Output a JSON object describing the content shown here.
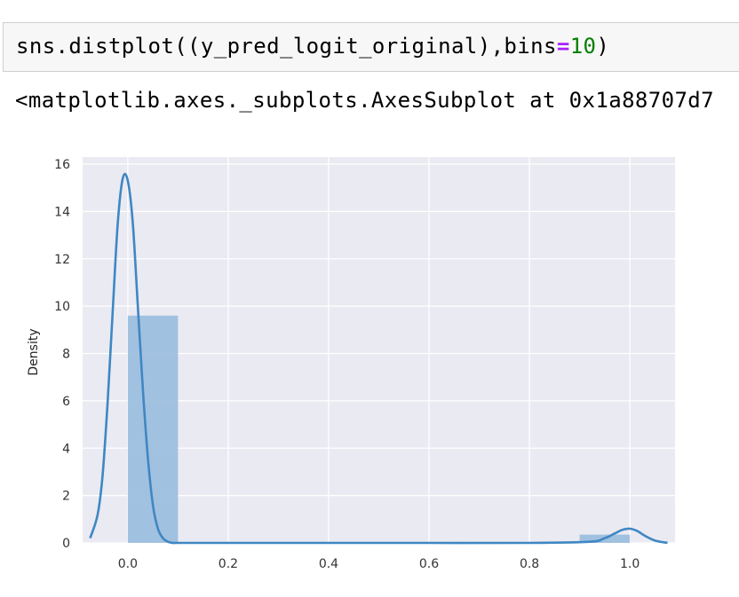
{
  "cell": {
    "code_prefix": "sns.distplot((y_pred_logit_original),bins",
    "code_op": "=",
    "code_num": "10",
    "code_suffix": ")"
  },
  "output": {
    "repr": "<matplotlib.axes._subplots.AxesSubplot at 0x1a88707d7"
  },
  "colors": {
    "axes_bg": "#eaeaf2",
    "grid": "#ffffff",
    "bar": "#9dbfde",
    "kde": "#3f87c3"
  },
  "chart_data": {
    "type": "bar",
    "ylabel": "Density",
    "xlim": [
      -0.09,
      1.09
    ],
    "ylim": [
      0,
      16.3
    ],
    "xticks": [
      0.0,
      0.2,
      0.4,
      0.6,
      0.8,
      1.0
    ],
    "xtick_labels": [
      "0.0",
      "0.2",
      "0.4",
      "0.6",
      "0.8",
      "1.0"
    ],
    "yticks": [
      0,
      2,
      4,
      6,
      8,
      10,
      12,
      14,
      16
    ],
    "ytick_labels": [
      "0",
      "2",
      "4",
      "6",
      "8",
      "10",
      "12",
      "14",
      "16"
    ],
    "grid": true,
    "bins": [
      {
        "x0": 0.0,
        "x1": 0.1,
        "density": 9.6
      },
      {
        "x0": 0.1,
        "x1": 0.2,
        "density": 0
      },
      {
        "x0": 0.2,
        "x1": 0.3,
        "density": 0
      },
      {
        "x0": 0.3,
        "x1": 0.4,
        "density": 0
      },
      {
        "x0": 0.4,
        "x1": 0.5,
        "density": 0
      },
      {
        "x0": 0.5,
        "x1": 0.6,
        "density": 0
      },
      {
        "x0": 0.6,
        "x1": 0.7,
        "density": 0
      },
      {
        "x0": 0.7,
        "x1": 0.8,
        "density": 0
      },
      {
        "x0": 0.8,
        "x1": 0.9,
        "density": 0
      },
      {
        "x0": 0.9,
        "x1": 1.0,
        "density": 0.35
      }
    ],
    "kde": {
      "x": [
        -0.075,
        -0.06,
        -0.05,
        -0.04,
        -0.03,
        -0.02,
        -0.01,
        0.0,
        0.01,
        0.02,
        0.03,
        0.04,
        0.05,
        0.06,
        0.07,
        0.08,
        0.09,
        0.1,
        0.2,
        0.4,
        0.6,
        0.8,
        0.92,
        0.95,
        0.97,
        0.985,
        1.0,
        1.015,
        1.03,
        1.05,
        1.075
      ],
      "y": [
        0.2,
        1.2,
        2.9,
        6.0,
        9.8,
        13.5,
        15.4,
        15.3,
        13.5,
        10.0,
        6.5,
        3.6,
        1.6,
        0.6,
        0.2,
        0.05,
        0.0,
        0.0,
        0.0,
        0.0,
        0.0,
        0.0,
        0.05,
        0.2,
        0.4,
        0.55,
        0.6,
        0.5,
        0.3,
        0.1,
        0.0
      ]
    }
  }
}
